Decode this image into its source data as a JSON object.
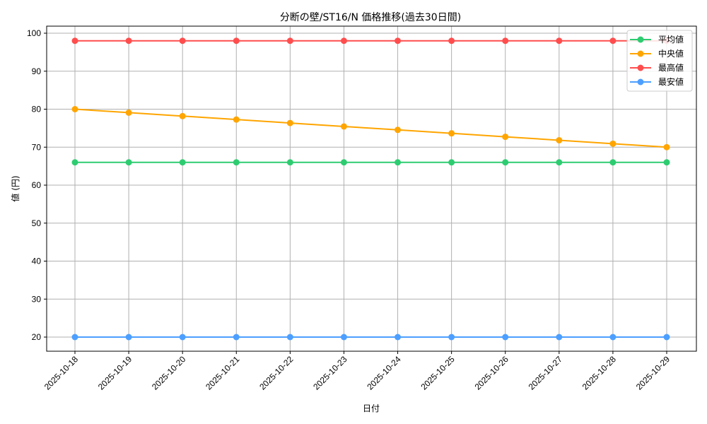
{
  "chart_data": {
    "type": "line",
    "title": "分断の壁/ST16/N 価格推移(過去30日間)",
    "xlabel": "日付",
    "ylabel": "値 (円)",
    "categories": [
      "2025-10-18",
      "2025-10-19",
      "2025-10-20",
      "2025-10-21",
      "2025-10-22",
      "2025-10-23",
      "2025-10-24",
      "2025-10-25",
      "2025-10-26",
      "2025-10-27",
      "2025-10-28",
      "2025-10-29"
    ],
    "ylim": [
      16.2,
      102.2
    ],
    "yticks": [
      20,
      30,
      40,
      50,
      60,
      70,
      80,
      90,
      100
    ],
    "grid": true,
    "legend_position": "upper right",
    "series": [
      {
        "name": "平均値",
        "color": "#2ecc71",
        "values": [
          66,
          66,
          66,
          66,
          66,
          66,
          66,
          66,
          66,
          66,
          66,
          66
        ]
      },
      {
        "name": "中央値",
        "color": "#ffa500",
        "values": [
          80,
          79.09,
          78.18,
          77.27,
          76.36,
          75.45,
          74.55,
          73.64,
          72.73,
          71.82,
          70.91,
          70
        ]
      },
      {
        "name": "最高値",
        "color": "#ff4d4d",
        "values": [
          98,
          98,
          98,
          98,
          98,
          98,
          98,
          98,
          98,
          98,
          98,
          98
        ]
      },
      {
        "name": "最安値",
        "color": "#4d9fff",
        "values": [
          20,
          20,
          20,
          20,
          20,
          20,
          20,
          20,
          20,
          20,
          20,
          20
        ]
      }
    ]
  }
}
